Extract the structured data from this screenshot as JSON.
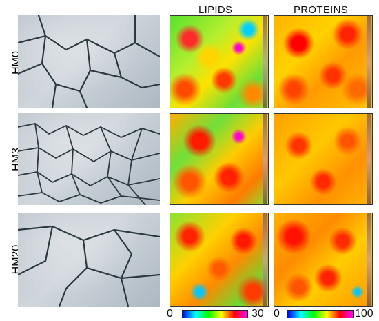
{
  "column_headers": {
    "lipids": "LIPIDS",
    "proteins": "PROTEINS"
  },
  "rows": [
    {
      "label": "HM0"
    },
    {
      "label": "HM3"
    },
    {
      "label": "HM20"
    }
  ],
  "colorbars": {
    "lipids": {
      "min": "0",
      "max": "30"
    },
    "proteins": {
      "min": "0",
      "max": "100"
    }
  },
  "colors": {
    "crack": "#2b3a3f",
    "colormap": [
      "#0000ff",
      "#00ffff",
      "#00ff00",
      "#ffff00",
      "#ff0000",
      "#ff00ff"
    ]
  }
}
